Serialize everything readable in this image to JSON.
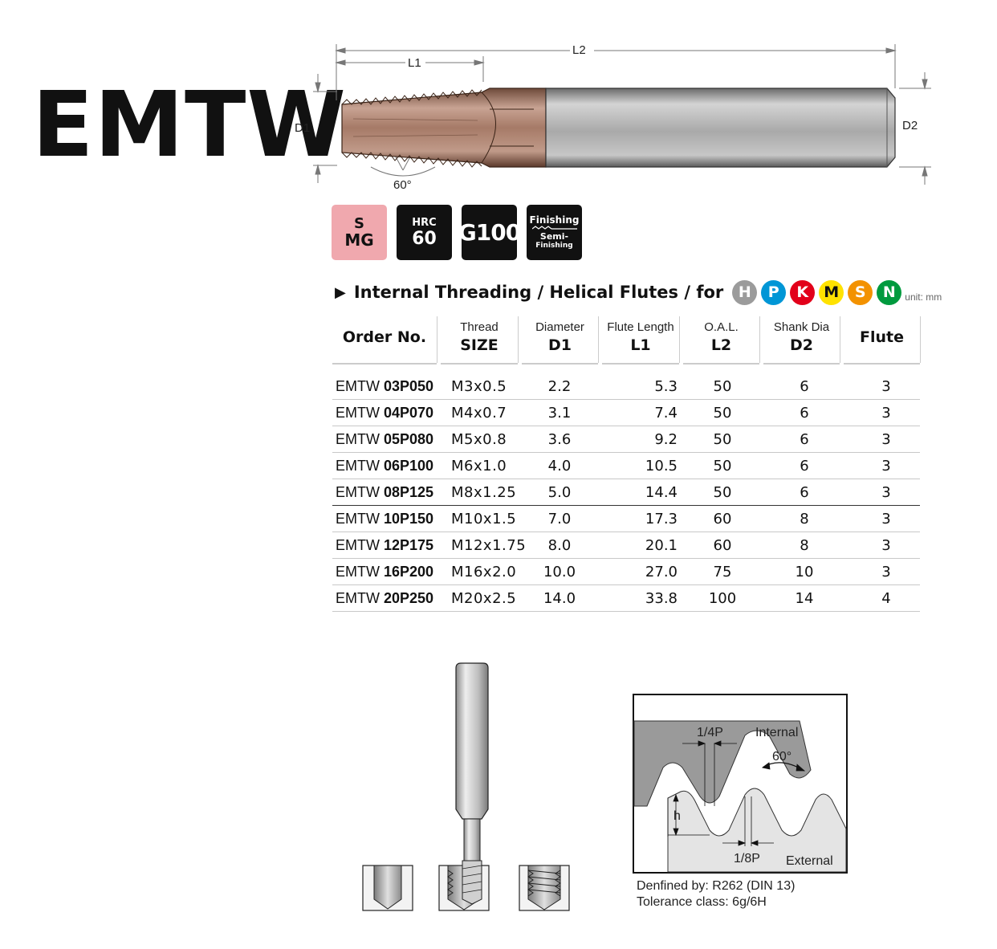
{
  "title": "EMTW",
  "drawing": {
    "l2": "L2",
    "l1": "L1",
    "d1": "D1",
    "d2": "D2",
    "angle": "60°"
  },
  "badges": [
    {
      "line1": "S",
      "line2": "MG"
    },
    {
      "line1": "HRC",
      "line2": "60"
    },
    {
      "line1": "",
      "line2": "G100"
    },
    {
      "line1": "Finishing",
      "line2": "Semi-",
      "line3": "Finishing"
    }
  ],
  "section": {
    "title": "Internal Threading / Helical Flutes / for",
    "materials": [
      {
        "letter": "H",
        "color": "#9b9b9b"
      },
      {
        "letter": "P",
        "color": "#0096d6"
      },
      {
        "letter": "K",
        "color": "#e2001a"
      },
      {
        "letter": "M",
        "color": "#ffe200"
      },
      {
        "letter": "S",
        "color": "#f39200"
      },
      {
        "letter": "N",
        "color": "#009a3e"
      }
    ],
    "unit": "unit: mm"
  },
  "table": {
    "headers": [
      {
        "sub": "",
        "main": "Order No."
      },
      {
        "sub": "Thread",
        "main": "SIZE"
      },
      {
        "sub": "Diameter",
        "main": "D1"
      },
      {
        "sub": "Flute Length",
        "main": "L1"
      },
      {
        "sub": "O.A.L.",
        "main": "L2"
      },
      {
        "sub": "Shank Dia",
        "main": "D2"
      },
      {
        "sub": "",
        "main": "Flute"
      }
    ],
    "rows": [
      {
        "prefix": "EMTW ",
        "code": "03P050",
        "size": "M3x0.5",
        "d1": "2.2",
        "l1": "5.3",
        "l2": "50",
        "d2": "6",
        "flute": "3"
      },
      {
        "prefix": "EMTW ",
        "code": "04P070",
        "size": "M4x0.7",
        "d1": "3.1",
        "l1": "7.4",
        "l2": "50",
        "d2": "6",
        "flute": "3"
      },
      {
        "prefix": "EMTW ",
        "code": "05P080",
        "size": "M5x0.8",
        "d1": "3.6",
        "l1": "9.2",
        "l2": "50",
        "d2": "6",
        "flute": "3"
      },
      {
        "prefix": "EMTW ",
        "code": "06P100",
        "size": "M6x1.0",
        "d1": "4.0",
        "l1": "10.5",
        "l2": "50",
        "d2": "6",
        "flute": "3"
      },
      {
        "prefix": "EMTW ",
        "code": "08P125",
        "size": "M8x1.25",
        "d1": "5.0",
        "l1": "14.4",
        "l2": "50",
        "d2": "6",
        "flute": "3"
      },
      {
        "prefix": "EMTW ",
        "code": "10P150",
        "size": "M10x1.5",
        "d1": "7.0",
        "l1": "17.3",
        "l2": "60",
        "d2": "8",
        "flute": "3"
      },
      {
        "prefix": "EMTW ",
        "code": "12P175",
        "size": "M12x1.75",
        "d1": "8.0",
        "l1": "20.1",
        "l2": "60",
        "d2": "8",
        "flute": "3"
      },
      {
        "prefix": "EMTW ",
        "code": "16P200",
        "size": "M16x2.0",
        "d1": "10.0",
        "l1": "27.0",
        "l2": "75",
        "d2": "10",
        "flute": "3"
      },
      {
        "prefix": "EMTW ",
        "code": "20P250",
        "size": "M20x2.5",
        "d1": "14.0",
        "l1": "33.8",
        "l2": "100",
        "d2": "14",
        "flute": "4"
      }
    ]
  },
  "thread_diagram": {
    "quarter_pitch": "1/4P",
    "internal": "Internal",
    "angle": "60°",
    "height": "h",
    "eighth_pitch": "1/8P",
    "external": "External"
  },
  "standard": {
    "defined_by": "Denfined by: R262 (DIN 13)",
    "tolerance": "Tolerance class: 6g/6H"
  }
}
